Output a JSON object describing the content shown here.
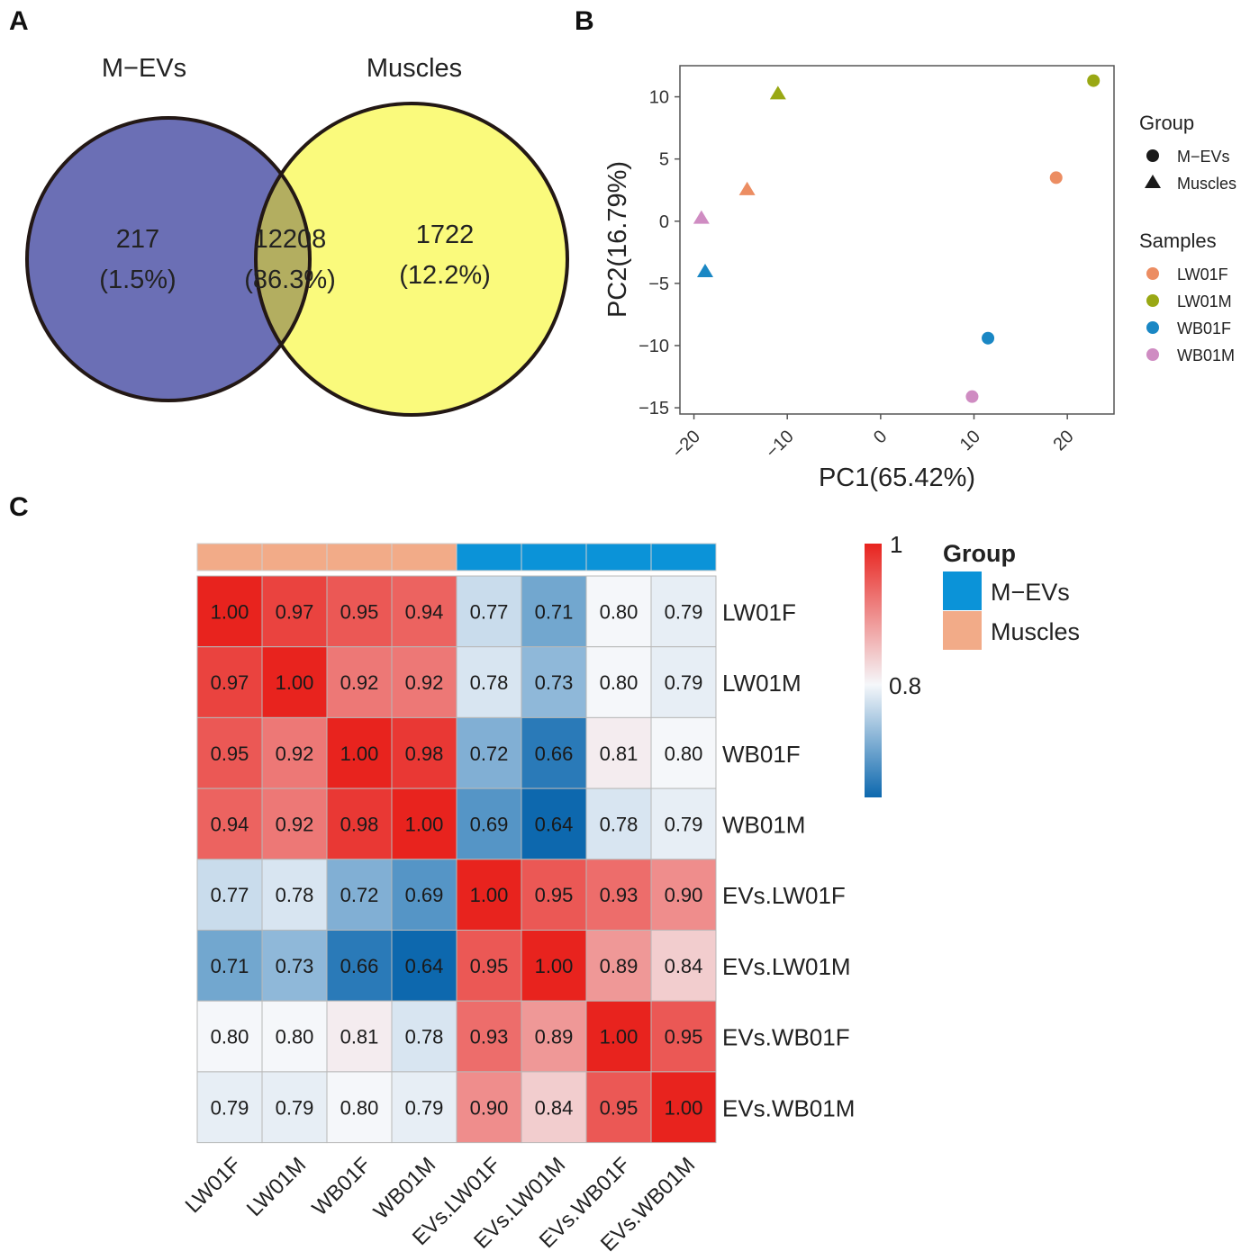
{
  "panels": {
    "a": "A",
    "b": "B",
    "c": "C"
  },
  "colors": {
    "venn_left": "#6b6fb5",
    "venn_right": "#fafa7c",
    "venn_overlap": "#b3ae60",
    "mevs": "#0b93d8",
    "muscles": "#f2ab88",
    "heat_low": "#0d68ae",
    "heat_mid": "#f5f7fa",
    "heat_high": "#e8231e"
  },
  "chart_data": [
    {
      "type": "venn",
      "sets": [
        {
          "name": "M−EVs",
          "only": "217",
          "only_pct": "(1.5%)"
        },
        {
          "name": "Muscles",
          "only": "1722",
          "only_pct": "(12.2%)"
        }
      ],
      "overlap": "12208",
      "overlap_pct": "(86.3%)"
    },
    {
      "type": "scatter",
      "xlabel": "PC1(65.42%)",
      "ylabel": "PC2(16.79%)",
      "xlim": [
        -21.5,
        25
      ],
      "ylim": [
        -15.5,
        12.5
      ],
      "xticks": [
        -20,
        -10,
        0,
        10,
        20
      ],
      "yticks": [
        -15,
        -10,
        -5,
        0,
        5,
        10
      ],
      "points": [
        {
          "group": "Muscles",
          "sample": "LW01M",
          "x": -11,
          "y": 10.3
        },
        {
          "group": "Muscles",
          "sample": "LW01F",
          "x": -14.3,
          "y": 2.6
        },
        {
          "group": "Muscles",
          "sample": "WB01M",
          "x": -19.2,
          "y": 0.3
        },
        {
          "group": "Muscles",
          "sample": "WB01F",
          "x": -18.8,
          "y": -4
        },
        {
          "group": "M−EVs",
          "sample": "LW01M",
          "x": 22.8,
          "y": 11.3
        },
        {
          "group": "M−EVs",
          "sample": "LW01F",
          "x": 18.8,
          "y": 3.5
        },
        {
          "group": "M−EVs",
          "sample": "WB01F",
          "x": 11.5,
          "y": -9.4
        },
        {
          "group": "M−EVs",
          "sample": "WB01M",
          "x": 9.8,
          "y": -14.1
        }
      ],
      "legend_group": {
        "title": "Group",
        "items": [
          "M−EVs",
          "Muscles"
        ]
      },
      "legend_samples": {
        "title": "Samples",
        "items": [
          {
            "label": "LW01F",
            "color": "#ec8d62"
          },
          {
            "label": "LW01M",
            "color": "#99a814"
          },
          {
            "label": "WB01F",
            "color": "#1a87c4"
          },
          {
            "label": "WB01M",
            "color": "#cf8cc2"
          }
        ]
      }
    },
    {
      "type": "heatmap",
      "rows": [
        "LW01F",
        "LW01M",
        "WB01F",
        "WB01M",
        "EVs.LW01F",
        "EVs.LW01M",
        "EVs.WB01F",
        "EVs.WB01M"
      ],
      "cols": [
        "LW01F",
        "LW01M",
        "WB01F",
        "WB01M",
        "EVs.LW01F",
        "EVs.LW01M",
        "EVs.WB01F",
        "EVs.WB01M"
      ],
      "col_groups": [
        "Muscles",
        "Muscles",
        "Muscles",
        "Muscles",
        "M−EVs",
        "M−EVs",
        "M−EVs",
        "M−EVs"
      ],
      "values": [
        [
          1.0,
          0.97,
          0.95,
          0.94,
          0.77,
          0.71,
          0.8,
          0.79
        ],
        [
          0.97,
          1.0,
          0.92,
          0.92,
          0.78,
          0.73,
          0.8,
          0.79
        ],
        [
          0.95,
          0.92,
          1.0,
          0.98,
          0.72,
          0.66,
          0.81,
          0.8
        ],
        [
          0.94,
          0.92,
          0.98,
          1.0,
          0.69,
          0.64,
          0.78,
          0.79
        ],
        [
          0.77,
          0.78,
          0.72,
          0.69,
          1.0,
          0.95,
          0.93,
          0.9
        ],
        [
          0.71,
          0.73,
          0.66,
          0.64,
          0.95,
          1.0,
          0.89,
          0.84
        ],
        [
          0.8,
          0.8,
          0.81,
          0.78,
          0.93,
          0.89,
          1.0,
          0.95
        ],
        [
          0.79,
          0.79,
          0.8,
          0.79,
          0.9,
          0.84,
          0.95,
          1.0
        ]
      ],
      "scale": {
        "min": 0.64,
        "mid": 0.8,
        "max": 1.0,
        "tick_labels": [
          "1",
          "0.8"
        ]
      },
      "legend": {
        "title": "Group",
        "items": [
          "M−EVs",
          "Muscles"
        ]
      }
    }
  ]
}
